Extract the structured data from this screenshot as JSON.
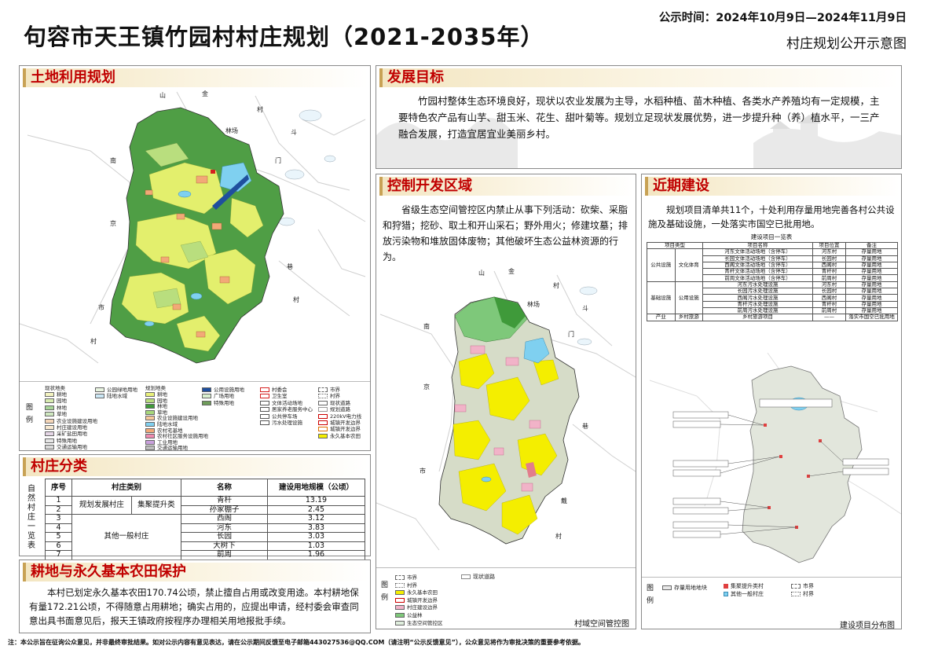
{
  "header": {
    "title": "句容市天王镇竹园村村庄规划（2021-2035年）",
    "publicity": "公示时间：2024年10月9日—2024年11月9日",
    "subtitle": "村庄规划公开示意图"
  },
  "land_use": {
    "heading": "土地利用规划",
    "legend_label": "图 例",
    "place_labels": [
      "金",
      "山",
      "村",
      "林场",
      "斗",
      "门",
      "南",
      "京",
      "市",
      "村",
      "巷",
      "村"
    ],
    "legend_col1_title": "现状地类",
    "legend_col1": [
      "耕地",
      "园地",
      "林地",
      "草地",
      "农业设施建设用地",
      "村庄建设用地",
      "采矿盐田用地",
      "特殊用地",
      "交通运输用地"
    ],
    "legend_col2": [
      "公园绿地用地",
      "陆地水域"
    ],
    "legend_col3_title": "规划地类",
    "legend_col3": [
      "耕地",
      "园地",
      "林地",
      "草地",
      "农业设施建设用地",
      "陆地水域",
      "农村宅基地",
      "农村社区服务设施用地",
      "工业用地",
      "交通运输用地"
    ],
    "legend_col4": [
      "公用设施用地",
      "广场用地",
      "特殊用地"
    ],
    "legend_col5": [
      "村委会",
      "卫生室",
      "文体活动场地",
      "居家养老服务中心",
      "公共停车场",
      "污水处理设施"
    ],
    "legend_col6": [
      "市界",
      "村界",
      "现状道路",
      "规划道路",
      "220kV电力线",
      "城镇开发边界",
      "城镇开发边界",
      "永久基本农田"
    ]
  },
  "village_class": {
    "heading": "村庄分类",
    "side_label": "自然村庄一览表",
    "columns": [
      "序号",
      "村庄类别",
      "名称",
      "建设用地规模（公顷）"
    ],
    "category_develop": "规划发展村庄",
    "category_cluster": "集聚提升类",
    "category_other": "其他一般村庄",
    "rows": [
      {
        "no": "1",
        "name": "青杆",
        "area": "13.19"
      },
      {
        "no": "2",
        "name": "孙家棚子",
        "area": "2.45"
      },
      {
        "no": "3",
        "name": "西阁",
        "area": "3.12"
      },
      {
        "no": "4",
        "name": "河东",
        "area": "3.83"
      },
      {
        "no": "5",
        "name": "长园",
        "area": "3.03"
      },
      {
        "no": "6",
        "name": "大树下",
        "area": "1.03"
      },
      {
        "no": "7",
        "name": "前周",
        "area": "1.96"
      }
    ]
  },
  "farmland": {
    "heading": "耕地与永久基本农田保护",
    "body": "本村已划定永久基本农田170.74公顷，禁止擅自占用或改变用途。本村耕地保有量172.21公顷，不得随意占用耕地；确实占用的，应提出申请，经村委会审查同意出具书面意见后，报天王镇政府按程序办理相关用地报批手续。"
  },
  "goal": {
    "heading": "发展目标",
    "body": "竹园村整体生态环境良好，现状以农业发展为主导，水稻种植、苗木种植、各类水产养殖均有一定规模，主要特色农产品有山芋、甜玉米、花生、甜叶菊等。规划立足现状发展优势，进一步提升种（养）植水平，一三产融合发展，打造宜居宜业美丽乡村。"
  },
  "control": {
    "heading": "控制开发区域",
    "body": "省级生态空间管控区内禁止从事下列活动：砍柴、采脂和狩猎；挖砂、取土和开山采石；野外用火；修建坟墓；排放污染物和堆放固体废物；其他破坏生态公益林资源的行为。",
    "place_labels": [
      "金",
      "山",
      "村",
      "林场",
      "斗",
      "门",
      "南",
      "京",
      "市",
      "巷",
      "戴",
      "村"
    ],
    "legend_label": "图 例",
    "legend": [
      "市界",
      "村界",
      "永久基本农田",
      "城镇开发边界",
      "村庄建设边界",
      "公益林",
      "生态空间管控区"
    ],
    "legend_extra": "现状道路",
    "map_caption": "村域空间管控图"
  },
  "near_term": {
    "heading": "近期建设",
    "body": "规划项目清单共11个，十处利用存量用地完善各村公共设施及基础设施，一处落实市国空已批用地。",
    "table_title": "建设项目一览表",
    "columns": [
      "项目类型",
      "项目名称",
      "项目位置",
      "备注"
    ],
    "type_public": "公共设施",
    "sub_culture": "文化体育",
    "type_infra": "基础设施",
    "sub_utility": "公用设施",
    "type_industry": "产业",
    "sub_tourism": "乡村旅游",
    "rows": [
      {
        "name": "河东文体活动场地（含停车）",
        "loc": "河东村",
        "note": "存量用地"
      },
      {
        "name": "长园文体活动场地（含停车）",
        "loc": "长园村",
        "note": "存量用地"
      },
      {
        "name": "西阁文体活动场地（含停车）",
        "loc": "西阁村",
        "note": "存量用地"
      },
      {
        "name": "青杆文体活动场地（含停车）",
        "loc": "青杆村",
        "note": "存量用地"
      },
      {
        "name": "前周文体活动场地（含停车）",
        "loc": "前周村",
        "note": "存量用地"
      },
      {
        "name": "河东污水处理设施",
        "loc": "河东村",
        "note": "存量用地"
      },
      {
        "name": "长园污水处理设施",
        "loc": "长园村",
        "note": "存量用地"
      },
      {
        "name": "西阁污水处理设施",
        "loc": "西阁村",
        "note": "存量用地"
      },
      {
        "name": "青杆污水处理设施",
        "loc": "青杆村",
        "note": "存量用地"
      },
      {
        "name": "前周污水处理设施",
        "loc": "前周村",
        "note": "存量用地"
      },
      {
        "name": "乡村旅游项目",
        "loc": "——",
        "note": "落实市国空已批用地"
      }
    ],
    "legend_label": "图 例",
    "legend": [
      "存量用地地块",
      "集聚提升类村",
      "其他一般村庄",
      "市界",
      "村界"
    ],
    "map_caption": "建设项目分布图"
  },
  "footer": {
    "note": "注：本公示旨在征询公众意见，并非最终审批结果。如对公示内容有意见表达，请在公示期间反馈至电子邮箱443027536@QQ.COM（请注明“公示反馈意见”），公众意见将作为审批决策的重要参考依据。"
  },
  "colors": {
    "accent_red": "#c00000",
    "forest": "#3f9a3a",
    "farmland": "#e8f07a",
    "permanent_farmland": "#f4ee00",
    "water": "#7fd0f0",
    "eco_control": "#7ec87a",
    "village": "#f1b3c8"
  }
}
